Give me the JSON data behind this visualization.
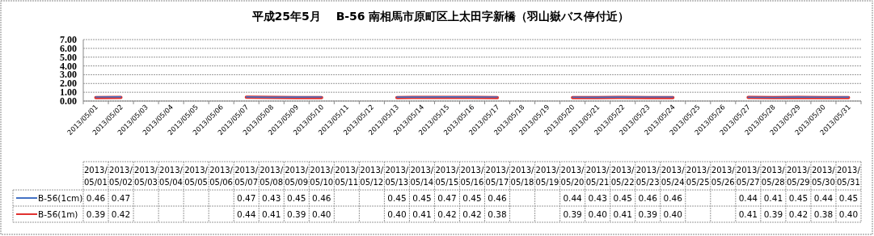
{
  "chart_data": {
    "type": "line",
    "title": "平成25年5月　 B-56 南相馬市原町区上太田字新橋（羽山嶽バス停付近）",
    "categories": [
      "2013/05/01",
      "2013/05/02",
      "2013/05/03",
      "2013/05/04",
      "2013/05/05",
      "2013/05/06",
      "2013/05/07",
      "2013/05/08",
      "2013/05/09",
      "2013/05/10",
      "2013/05/11",
      "2013/05/12",
      "2013/05/13",
      "2013/05/14",
      "2013/05/15",
      "2013/05/16",
      "2013/05/17",
      "2013/05/18",
      "2013/05/19",
      "2013/05/20",
      "2013/05/21",
      "2013/05/22",
      "2013/05/23",
      "2013/05/24",
      "2013/05/25",
      "2013/05/26",
      "2013/05/27",
      "2013/05/28",
      "2013/05/29",
      "2013/05/30",
      "2013/05/31"
    ],
    "series": [
      {
        "name": "B-56(1cm)",
        "color": "#4472c4",
        "values": [
          0.46,
          0.47,
          null,
          null,
          null,
          null,
          0.47,
          0.43,
          0.45,
          0.46,
          null,
          null,
          0.45,
          0.45,
          0.47,
          0.45,
          0.46,
          null,
          null,
          0.44,
          0.43,
          0.45,
          0.46,
          0.46,
          null,
          null,
          0.44,
          0.41,
          0.45,
          0.44,
          0.45
        ],
        "value_labels": [
          "0.46",
          "0.47",
          null,
          null,
          null,
          null,
          "0.47",
          "0.43",
          "0.45",
          "0.46",
          null,
          null,
          "0.45",
          "0.45",
          "0.47",
          "0.45",
          "0.46",
          null,
          null,
          "0.44",
          "0.43",
          "0.45",
          "0.46",
          "0.46",
          null,
          null,
          "0.44",
          "0.41",
          "0.45",
          "0.44",
          "0.45"
        ]
      },
      {
        "name": "B-56(1m)",
        "color": "#e0312f",
        "values": [
          0.39,
          0.42,
          null,
          null,
          null,
          null,
          0.44,
          0.41,
          0.39,
          0.4,
          null,
          null,
          0.4,
          0.41,
          0.42,
          0.42,
          0.38,
          null,
          null,
          0.39,
          0.4,
          0.41,
          0.39,
          0.4,
          null,
          null,
          0.41,
          0.39,
          0.42,
          0.38,
          0.4
        ],
        "value_labels": [
          "0.39",
          "0.42",
          null,
          null,
          null,
          null,
          "0.44",
          "0.41",
          "0.39",
          "0.40",
          null,
          null,
          "0.40",
          "0.41",
          "0.42",
          "0.42",
          "0.38",
          null,
          null,
          "0.39",
          "0.40",
          "0.41",
          "0.39",
          "0.40",
          null,
          null,
          "0.41",
          "0.39",
          "0.42",
          "0.38",
          "0.40"
        ]
      }
    ],
    "ylim": [
      0,
      7
    ],
    "yticks": [
      {
        "value": 0,
        "label": "0.00"
      },
      {
        "value": 1,
        "label": "1.00"
      },
      {
        "value": 2,
        "label": "2.00"
      },
      {
        "value": 3,
        "label": "3.00"
      },
      {
        "value": 4,
        "label": "4.00"
      },
      {
        "value": 5,
        "label": "5.00"
      },
      {
        "value": 6,
        "label": "6.00"
      },
      {
        "value": 7,
        "label": "7.00"
      }
    ],
    "grid": "y",
    "legend": "bottom",
    "marker": "none",
    "line_style": "solid"
  }
}
